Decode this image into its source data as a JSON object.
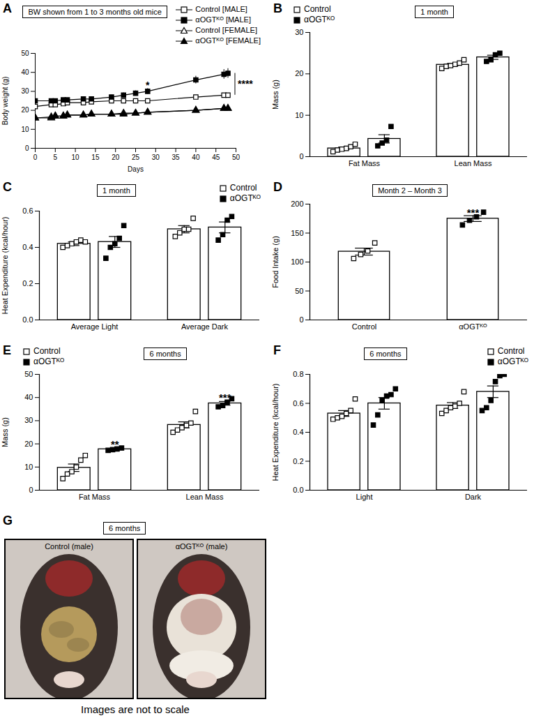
{
  "chart_data": [
    {
      "panel": "A",
      "type": "line",
      "title": "BW shown from 1 to 3 months old mice",
      "x_label": "Days",
      "y_label": "Body weight (g)",
      "x": [
        0,
        4,
        5,
        7,
        8,
        12,
        14,
        19,
        22,
        25,
        28,
        40,
        47,
        48
      ],
      "xlim": [
        0,
        50
      ],
      "xticks": [
        0,
        5,
        10,
        15,
        20,
        25,
        30,
        35,
        40,
        45,
        50
      ],
      "ylim": [
        0,
        50
      ],
      "yticks": [
        0,
        10,
        20,
        30,
        40,
        50
      ],
      "legend": "top-right",
      "series": [
        {
          "name": "Control [MALE]",
          "color": "black",
          "marker": "open_square",
          "values": [
            22,
            23,
            23,
            23.5,
            24,
            24,
            24.5,
            25,
            25,
            25,
            25,
            27,
            28,
            28
          ],
          "errors": [
            0.5,
            0.5,
            0.5,
            0.5,
            0.5,
            0.5,
            0.5,
            0.5,
            0.5,
            0.5,
            0.6,
            0.8,
            1,
            1
          ]
        },
        {
          "name": "αOGTᴷᴼ [MALE]",
          "color": "black",
          "marker": "filled_square",
          "values": [
            25,
            25,
            25,
            25.5,
            25.5,
            26,
            26,
            27,
            28,
            29,
            30,
            36,
            39,
            39.5
          ],
          "errors": [
            0.5,
            0.6,
            0.6,
            0.6,
            0.7,
            0.7,
            0.8,
            1,
            1.2,
            1.3,
            1.5,
            2,
            2.5,
            2.5
          ]
        },
        {
          "name": "Control [FEMALE]",
          "color": "black",
          "marker": "open_triangle",
          "values": [
            16,
            16.5,
            17,
            17,
            17.5,
            17.5,
            18,
            18,
            18.5,
            18.5,
            19,
            20,
            21,
            21
          ],
          "errors": [
            0.5,
            0.5,
            0.5,
            0.5,
            0.5,
            0.5,
            0.5,
            0.5,
            0.5,
            0.5,
            0.5,
            0.5,
            0.5,
            0.5
          ]
        },
        {
          "name": "αOGTᴷᴼ [FEMALE]",
          "color": "black",
          "marker": "filled_triangle",
          "values": [
            16,
            16,
            17,
            17,
            17.5,
            17.5,
            18,
            18,
            18,
            18.5,
            19,
            20,
            21,
            21
          ],
          "errors": [
            0.5,
            0.5,
            0.5,
            0.5,
            0.5,
            0.5,
            0.5,
            0.5,
            0.5,
            0.5,
            0.5,
            0.5,
            0.5,
            0.5
          ]
        }
      ],
      "annotations": [
        {
          "text": "*",
          "x": 28,
          "y": 34
        },
        {
          "text": "****",
          "x": 48,
          "y": 34
        }
      ]
    },
    {
      "panel": "B",
      "type": "bar",
      "title": "1 month",
      "y_label": "Mass (g)",
      "categories": [
        "Fat Mass",
        "Lean Mass"
      ],
      "ylim": [
        0,
        30
      ],
      "yticks": [
        0,
        10,
        20,
        30
      ],
      "legend": "top-left",
      "series": [
        {
          "name": "Control",
          "color": "white",
          "marker": "open_square",
          "values": [
            2.0,
            22.2
          ],
          "errors": [
            0.3,
            0.3
          ],
          "points": [
            [
              1.2,
              1.6,
              1.8,
              2.0,
              2.4,
              3.0
            ],
            [
              21.3,
              21.8,
              22.0,
              22.3,
              22.6,
              23.4
            ]
          ]
        },
        {
          "name": "αOGTᴷᴼ",
          "color": "white",
          "marker": "filled_square",
          "values": [
            4.3,
            24.0
          ],
          "errors": [
            1.0,
            0.5
          ],
          "points": [
            [
              2.6,
              3.3,
              4.0,
              7.3
            ],
            [
              23.0,
              23.4,
              24.6,
              25.0
            ]
          ]
        }
      ]
    },
    {
      "panel": "C",
      "type": "bar",
      "title": "1 month",
      "y_label": "Heat Expenditure (kcal/hour)",
      "categories": [
        "Average Light",
        "Average Dark"
      ],
      "ylim": [
        0,
        0.6
      ],
      "yticks": [
        {
          "value": 0,
          "label": "0.0"
        },
        {
          "value": 0.2,
          "label": "0.2"
        },
        {
          "value": 0.4,
          "label": "0.4"
        },
        {
          "value": 0.6,
          "label": "0.6"
        }
      ],
      "legend": "top-right",
      "series": [
        {
          "name": "Control",
          "color": "white",
          "marker": "open_square",
          "values": [
            0.42,
            0.5
          ],
          "errors": [
            0.01,
            0.02
          ],
          "points": [
            [
              0.4,
              0.41,
              0.42,
              0.43,
              0.44,
              0.43
            ],
            [
              0.46,
              0.48,
              0.5,
              0.5,
              0.56
            ]
          ]
        },
        {
          "name": "αOGTᴷᴼ",
          "color": "white",
          "marker": "filled_square",
          "values": [
            0.43,
            0.51
          ],
          "errors": [
            0.03,
            0.03
          ],
          "points": [
            [
              0.34,
              0.4,
              0.42,
              0.45,
              0.52
            ],
            [
              0.44,
              0.47,
              0.55,
              0.57
            ]
          ]
        }
      ]
    },
    {
      "panel": "D",
      "type": "bar",
      "title": "Month 2 – Month 3",
      "y_label": "Food Intake (g)",
      "categories": [
        "Control",
        "αOGTᴷᴼ"
      ],
      "marker": "square",
      "values": [
        118,
        175
      ],
      "errors": [
        6,
        5
      ],
      "points": [
        [
          106,
          113,
          119,
          133
        ],
        [
          164,
          172,
          178,
          186
        ]
      ],
      "ylim": [
        0,
        200
      ],
      "yticks": [
        0,
        50,
        100,
        150,
        200
      ],
      "annotations": [
        {
          "text": "***",
          "category": "αOGTᴷᴼ",
          "y": 190
        }
      ]
    },
    {
      "panel": "E",
      "type": "bar",
      "title": "6 months",
      "y_label": "Mass (g)",
      "categories": [
        "Fat Mass",
        "Lean Mass"
      ],
      "ylim": [
        0,
        50
      ],
      "yticks": [
        0,
        10,
        20,
        30,
        40,
        50
      ],
      "legend": "top-left",
      "series": [
        {
          "name": "Control",
          "color": "white",
          "marker": "open_square",
          "values": [
            9.7,
            28.2
          ],
          "errors": [
            1.6,
            1.3
          ],
          "points": [
            [
              5,
              7,
              8,
              10,
              13,
              15
            ],
            [
              25,
              26,
              27,
              28,
              29,
              34
            ]
          ]
        },
        {
          "name": "αOGTᴷᴼ",
          "color": "white",
          "marker": "filled_square",
          "values": [
            17.7,
            37.5
          ],
          "errors": [
            0.2,
            0.8
          ],
          "points": [
            [
              17.2,
              17.5,
              17.8,
              18.2
            ],
            [
              36,
              36.5,
              38,
              39.5
            ]
          ]
        }
      ],
      "annotations": [
        {
          "text": "**",
          "category": "Fat Mass",
          "series": "αOGTᴷᴼ",
          "y": 21
        },
        {
          "text": "***",
          "category": "Lean Mass",
          "series": "αOGTᴷᴼ",
          "y": 41
        }
      ]
    },
    {
      "panel": "F",
      "type": "bar",
      "title": "6 months",
      "y_label": "Heat Expenditure (kcal/hour)",
      "categories": [
        "Light",
        "Dark"
      ],
      "ylim": [
        0,
        0.8
      ],
      "yticks": [
        {
          "value": 0,
          "label": "0.0"
        },
        {
          "value": 0.2,
          "label": "0.2"
        },
        {
          "value": 0.4,
          "label": "0.4"
        },
        {
          "value": 0.6,
          "label": "0.6"
        },
        {
          "value": 0.8,
          "label": "0.8"
        }
      ],
      "legend": "top-right",
      "series": [
        {
          "name": "Control",
          "color": "white",
          "marker": "open_square",
          "values": [
            0.53,
            0.585
          ],
          "errors": [
            0.02,
            0.02
          ],
          "points": [
            [
              0.49,
              0.5,
              0.51,
              0.53,
              0.55,
              0.63
            ],
            [
              0.53,
              0.55,
              0.57,
              0.58,
              0.6,
              0.68
            ]
          ]
        },
        {
          "name": "αOGTᴷᴼ",
          "color": "white",
          "marker": "filled_square",
          "values": [
            0.6,
            0.68
          ],
          "errors": [
            0.04,
            0.04
          ],
          "points": [
            [
              0.45,
              0.52,
              0.62,
              0.65,
              0.66,
              0.7
            ],
            [
              0.55,
              0.57,
              0.62,
              0.75,
              0.79,
              0.8
            ]
          ]
        }
      ]
    }
  ],
  "image_panel": {
    "panel": "G",
    "title": "6 months",
    "images": [
      "Control (male)",
      "αOGTᴷᴼ (male)"
    ],
    "caption": "Images are not to scale"
  }
}
